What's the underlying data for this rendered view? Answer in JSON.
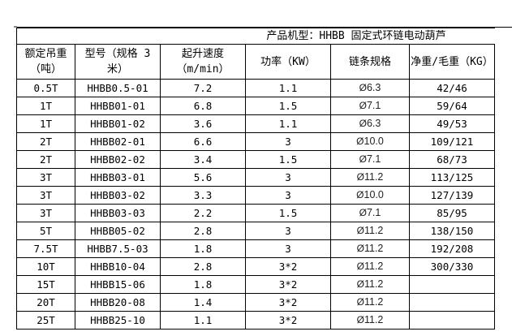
{
  "title": "产品机型：HHBB 固定式环链电动葫芦",
  "headers": [
    "额定吊重（吨）",
    "型号（规格 3 米）",
    "起升速度（m/min）",
    "功率（KW）",
    "链条规格",
    "净重/毛重（KG）"
  ],
  "chain_symbol": "Ø",
  "rows": [
    [
      "0.5T",
      "HHBB0.5-01",
      "7.2",
      "1.1",
      "6.3",
      "42/46"
    ],
    [
      "1T",
      "HHBB01-01",
      "6.8",
      "1.5",
      "7.1",
      "59/64"
    ],
    [
      "1T",
      "HHBB01-02",
      "3.6",
      "1.1",
      "6.3",
      "49/53"
    ],
    [
      "2T",
      "HHBB02-01",
      "6.6",
      "3",
      "10.0",
      "109/121"
    ],
    [
      "2T",
      "HHBB02-02",
      "3.4",
      "1.5",
      "7.1",
      "68/73"
    ],
    [
      "3T",
      "HHBB03-01",
      "5.6",
      "3",
      "11.2",
      "113/125"
    ],
    [
      "3T",
      "HHBB03-02",
      "3.3",
      "3",
      "10.0",
      "127/139"
    ],
    [
      "3T",
      "HHBB03-03",
      "2.2",
      "1.5",
      "7.1",
      "85/95"
    ],
    [
      "5T",
      "HHBB05-02",
      "2.8",
      "3",
      "11.2",
      "138/150"
    ],
    [
      "7.5T",
      "HHBB7.5-03",
      "1.8",
      "3",
      "11.2",
      "192/208"
    ],
    [
      "10T",
      "HHBB10-04",
      "2.8",
      "3*2",
      "11.2",
      "300/330"
    ],
    [
      "15T",
      "HHBB15-06",
      "1.8",
      "3*2",
      "11.2",
      ""
    ],
    [
      "20T",
      "HHBB20-08",
      "1.4",
      "3*2",
      "11.2",
      ""
    ],
    [
      "25T",
      "HHBB25-10",
      "1.1",
      "3*2",
      "11.2",
      ""
    ]
  ]
}
